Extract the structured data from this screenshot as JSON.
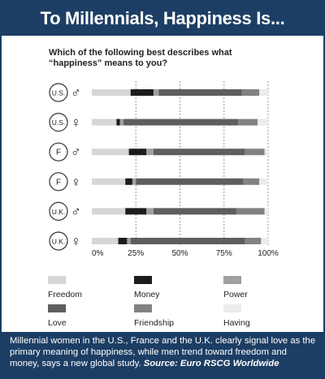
{
  "header": {
    "title": "To Millennials, Happiness Is..."
  },
  "question": "Which of the following best describes what “happiness” means to you?",
  "caption": {
    "text": "Millennial women in the U.S., France and the U.K. clearly signal love as the primary meaning of happiness, while men trend toward freedom and money, says a new global study.",
    "source": "Source: Euro RSCG Worldwide"
  },
  "colors": {
    "Freedom": "#d6d6d6",
    "Money": "#1c1c1c",
    "Power": "#a0a0a0",
    "Love": "#5e5e5e",
    "Friendship": "#828282",
    "Having": "#ececec"
  },
  "chart_data": {
    "type": "bar",
    "stacked": true,
    "orientation": "horizontal",
    "xlim": [
      0,
      100
    ],
    "tick_labels": [
      "0%",
      "25%",
      "50%",
      "75%",
      "100%"
    ],
    "categories": [
      {
        "code": "U.S.",
        "symbol": "♂",
        "icon": "male-symbol"
      },
      {
        "code": "U.S.",
        "symbol": "♀",
        "icon": "female-symbol"
      },
      {
        "code": "F",
        "symbol": "♂",
        "icon": "male-symbol"
      },
      {
        "code": "F",
        "symbol": "♀",
        "icon": "female-symbol"
      },
      {
        "code": "U.K.",
        "symbol": "♂",
        "icon": "male-symbol"
      },
      {
        "code": "U.K.",
        "symbol": "♀",
        "icon": "female-symbol"
      }
    ],
    "series": [
      {
        "name": "Freedom",
        "values": [
          22,
          14,
          21,
          19,
          19,
          15
        ]
      },
      {
        "name": "Money",
        "values": [
          13,
          2,
          10,
          4,
          12,
          5
        ]
      },
      {
        "name": "Power",
        "values": [
          3,
          2,
          4,
          2,
          4,
          2
        ]
      },
      {
        "name": "Love",
        "values": [
          47,
          65,
          52,
          61,
          47,
          65
        ]
      },
      {
        "name": "Friendship",
        "values": [
          10,
          11,
          11,
          9,
          16,
          9
        ]
      },
      {
        "name": "Having",
        "values": [
          5,
          6,
          2,
          5,
          2,
          4
        ]
      }
    ],
    "legend": [
      "Freedom",
      "Money",
      "Power",
      "Love",
      "Friendship",
      "Having"
    ],
    "legend_position": "bottom",
    "grid": "vertical dashed"
  }
}
